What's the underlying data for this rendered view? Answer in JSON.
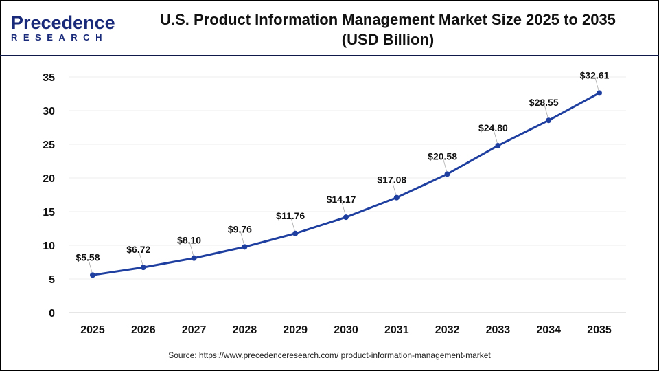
{
  "logo": {
    "main": "Precedence",
    "sub": "RESEARCH"
  },
  "title_line1": "U.S. Product Information Management Market Size 2025 to 2035",
  "title_line2": "(USD Billion)",
  "source": "Source: https://www.precedenceresearch.com/ product-information-management-market",
  "chart_data": {
    "type": "line",
    "title": "U.S. Product Information Management Market Size 2025 to 2035 (USD Billion)",
    "categories": [
      "2025",
      "2026",
      "2027",
      "2028",
      "2029",
      "2030",
      "2031",
      "2032",
      "2033",
      "2034",
      "2035"
    ],
    "values": [
      5.58,
      6.72,
      8.1,
      9.76,
      11.76,
      14.17,
      17.08,
      20.58,
      24.8,
      28.55,
      32.61
    ],
    "data_labels": [
      "$5.58",
      "$6.72",
      "$8.10",
      "$9.76",
      "$11.76",
      "$14.17",
      "$17.08",
      "$20.58",
      "$24.80",
      "$28.55",
      "$32.61"
    ],
    "yticks": [
      "0",
      "5",
      "10",
      "15",
      "20",
      "25",
      "30",
      "35"
    ],
    "ylim": [
      0,
      35
    ],
    "grid": true,
    "line_color": "#1f3fa0",
    "xlabel": "",
    "ylabel": ""
  }
}
